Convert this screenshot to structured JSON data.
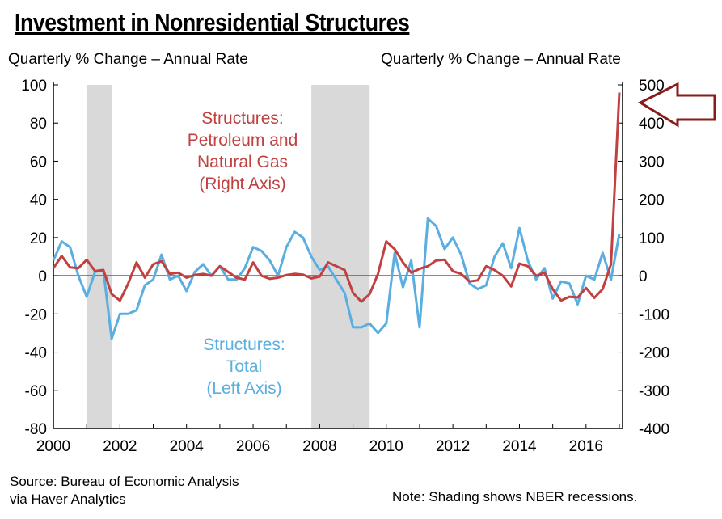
{
  "title": "Investment in Nonresidential Structures",
  "left_axis_label": "Quarterly % Change – Annual Rate",
  "right_axis_label": "Quarterly % Change – Annual Rate",
  "source_line1": "Source: Bureau of Economic Analysis",
  "source_line2": "via Haver Analytics",
  "note": "Note: Shading shows NBER recessions.",
  "chart_data": {
    "type": "line",
    "frequency": "quarterly",
    "x_start": "2000 Q1",
    "x_end": "2017 Q1",
    "xlim": [
      2000,
      2017
    ],
    "x_ticks": [
      "2000",
      "2002",
      "2004",
      "2006",
      "2008",
      "2010",
      "2012",
      "2014",
      "2016"
    ],
    "y_left": {
      "range": [
        -80,
        100
      ],
      "ticks": [
        "100",
        "80",
        "60",
        "40",
        "20",
        "0",
        "-20",
        "-40",
        "-60",
        "-80"
      ]
    },
    "y_right": {
      "range": [
        -400,
        500
      ],
      "ticks": [
        "500",
        "400",
        "300",
        "200",
        "100",
        "0",
        "-100",
        "-200",
        "-300",
        "-400"
      ]
    },
    "grid": false,
    "recessions": [
      [
        2001.0,
        2001.75
      ],
      [
        2007.75,
        2009.5
      ]
    ],
    "colors": {
      "total": "#5aaee0",
      "petroleum": "#c0413f",
      "recession": "#d9d9d9",
      "arrow": "#8b1a1a"
    },
    "series": [
      {
        "name": "Structures: Total (Left Axis)",
        "label_lines": [
          "Structures:",
          "Total",
          "(Left Axis)"
        ],
        "axis": "left",
        "values": [
          8,
          18,
          15,
          0,
          -11,
          2,
          3,
          -33,
          -20,
          -20,
          -18,
          -5,
          -2,
          11,
          -2,
          0,
          -8,
          2,
          6,
          0,
          5,
          -2,
          -2,
          4,
          15,
          13,
          8,
          0,
          15,
          23,
          20,
          10,
          3,
          5,
          -2,
          -9,
          -27,
          -27,
          -25,
          -30,
          -25,
          12,
          -6,
          8,
          -27,
          30,
          26,
          14,
          20,
          11,
          -4,
          -7,
          -5,
          10,
          17,
          4,
          25,
          8,
          -2,
          4,
          -12,
          -3,
          -4,
          -15,
          0,
          -2,
          12,
          -2,
          22
        ]
      },
      {
        "name": "Structures: Petroleum and Natural Gas (Right Axis)",
        "label_lines": [
          "Structures:",
          "Petroleum and",
          "Natural Gas",
          "(Right Axis)"
        ],
        "axis": "right",
        "values": [
          20,
          52,
          22,
          20,
          42,
          12,
          15,
          -48,
          -65,
          -20,
          35,
          -5,
          30,
          38,
          5,
          8,
          -5,
          2,
          5,
          0,
          25,
          10,
          -5,
          -10,
          35,
          0,
          -8,
          -5,
          2,
          5,
          3,
          -7,
          -2,
          35,
          25,
          15,
          -45,
          -68,
          -48,
          5,
          90,
          70,
          35,
          8,
          18,
          25,
          40,
          42,
          12,
          5,
          -15,
          -12,
          25,
          15,
          0,
          -28,
          32,
          25,
          0,
          8,
          -35,
          -65,
          -55,
          -57,
          -32,
          -58,
          -35,
          30,
          480
        ]
      }
    ]
  }
}
